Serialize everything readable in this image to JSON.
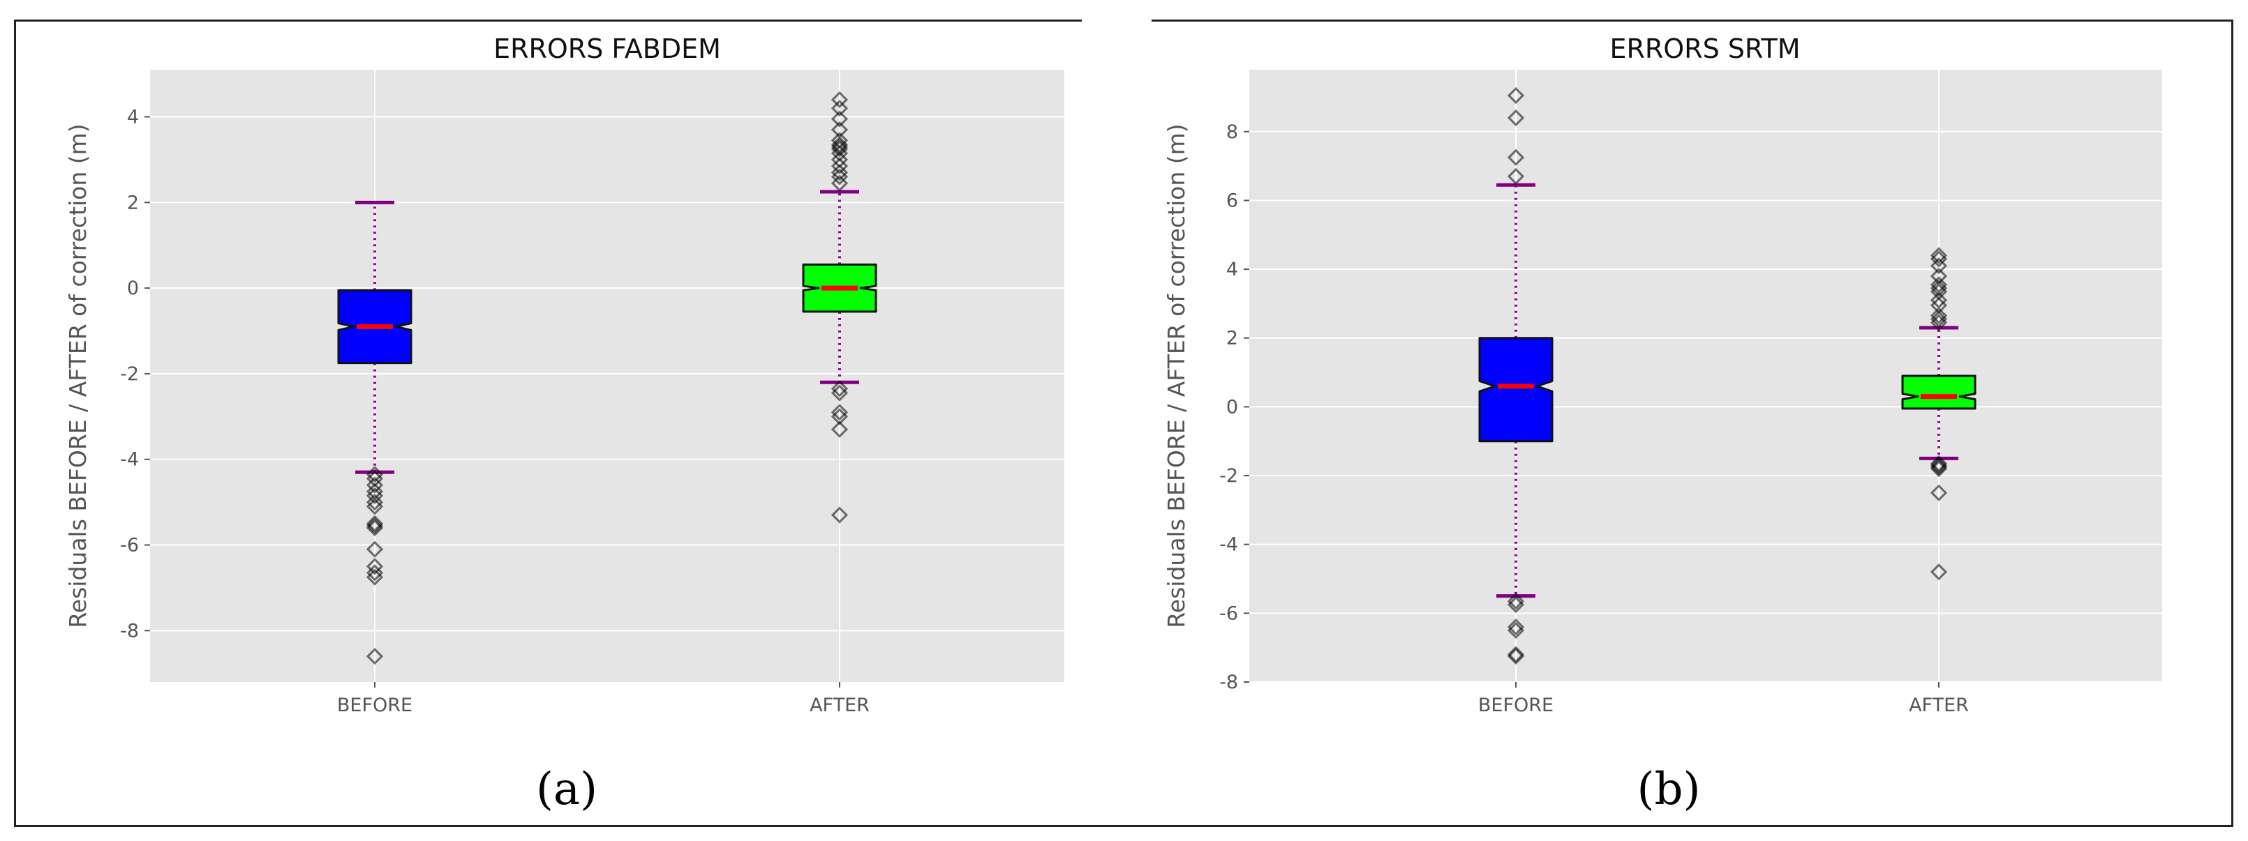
{
  "chart_data": [
    {
      "type": "boxplot",
      "title": "ERRORS FABDEM",
      "caption": "(a)",
      "xlabel": "",
      "ylabel": "Residuals BEFORE / AFTER of correction (m)",
      "ylim": [
        -9.2,
        5.1
      ],
      "yticks": [
        4,
        2,
        0,
        -2,
        -4,
        -6,
        -8
      ],
      "categories": [
        "BEFORE",
        "AFTER"
      ],
      "boxes": [
        {
          "name": "BEFORE",
          "color": "#0000ff",
          "q1": -1.75,
          "median": -0.9,
          "q3": -0.05,
          "whisker_low": -4.3,
          "whisker_high": 2.0,
          "notch_low": -0.98,
          "notch_high": -0.82,
          "outliers": [
            -4.35,
            -4.45,
            -4.6,
            -4.75,
            -4.85,
            -5.0,
            -5.1,
            -5.5,
            -5.55,
            -5.6,
            -6.1,
            -6.5,
            -6.65,
            -6.75,
            -8.6
          ]
        },
        {
          "name": "AFTER",
          "color": "#00ff00",
          "q1": -0.55,
          "median": 0.0,
          "q3": 0.55,
          "whisker_low": -2.2,
          "whisker_high": 2.25,
          "notch_low": -0.05,
          "notch_high": 0.05,
          "outliers": [
            2.45,
            2.6,
            2.7,
            2.85,
            3.0,
            3.15,
            3.25,
            3.3,
            3.35,
            3.45,
            3.7,
            3.95,
            4.2,
            4.4,
            -2.35,
            -2.45,
            -2.9,
            -3.0,
            -3.3,
            -5.3
          ]
        }
      ]
    },
    {
      "type": "boxplot",
      "title": "ERRORS SRTM",
      "caption": "(b)",
      "xlabel": "",
      "ylabel": "Residuals BEFORE / AFTER of correction (m)",
      "ylim": [
        -8,
        9.8
      ],
      "yticks": [
        8,
        6,
        4,
        2,
        0,
        -2,
        -4,
        -6,
        -8
      ],
      "categories": [
        "BEFORE",
        "AFTER"
      ],
      "boxes": [
        {
          "name": "BEFORE",
          "color": "#0000ff",
          "q1": -1.0,
          "median": 0.6,
          "q3": 2.0,
          "whisker_low": -5.5,
          "whisker_high": 6.45,
          "notch_low": 0.45,
          "notch_high": 0.75,
          "outliers": [
            6.7,
            7.25,
            8.4,
            9.05,
            -5.65,
            -5.75,
            -6.4,
            -6.5,
            -7.2,
            -7.25
          ]
        },
        {
          "name": "AFTER",
          "color": "#00ff00",
          "q1": -0.05,
          "median": 0.3,
          "q3": 0.9,
          "whisker_low": -1.5,
          "whisker_high": 2.3,
          "notch_low": 0.22,
          "notch_high": 0.38,
          "outliers": [
            2.45,
            2.55,
            2.65,
            2.95,
            3.1,
            3.35,
            3.45,
            3.55,
            3.8,
            4.1,
            4.3,
            4.4,
            -1.65,
            -1.7,
            -1.75,
            -1.8,
            -2.5,
            -4.8
          ]
        }
      ]
    }
  ]
}
